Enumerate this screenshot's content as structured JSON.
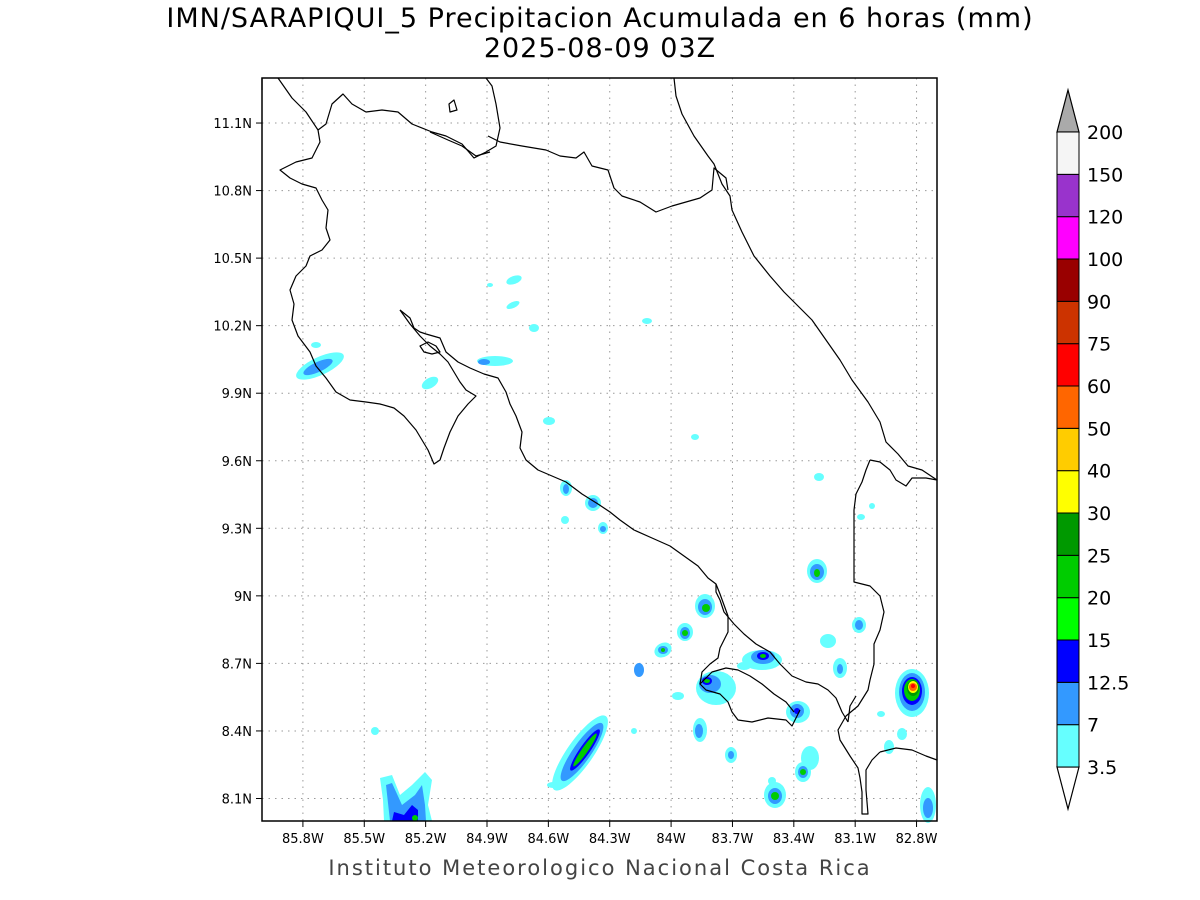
{
  "title": {
    "line1": "IMN/SARAPIQUI_5 Precipitacion Acumulada en 6 horas (mm)",
    "line2": "2025-08-09 03Z"
  },
  "footer": "Instituto Meteorologico Nacional Costa Rica",
  "map": {
    "lon_range": [
      -86.0,
      -82.7
    ],
    "lat_range": [
      8.0,
      11.3
    ],
    "lon_ticks": [
      "85.8W",
      "85.5W",
      "85.2W",
      "84.9W",
      "84.6W",
      "84.3W",
      "84W",
      "83.7W",
      "83.4W",
      "83.1W",
      "82.8W"
    ],
    "lat_ticks": [
      "11.1N",
      "10.8N",
      "10.5N",
      "10.2N",
      "9.9N",
      "9.6N",
      "9.3N",
      "9N",
      "8.7N",
      "8.4N",
      "8.1N"
    ]
  },
  "colorbar": {
    "labels": [
      "3.5",
      "7",
      "12.5",
      "15",
      "20",
      "25",
      "30",
      "40",
      "50",
      "60",
      "75",
      "90",
      "100",
      "120",
      "150",
      "200"
    ],
    "colors": [
      "#66ffff",
      "#3399ff",
      "#0000ff",
      "#00ff00",
      "#00cc00",
      "#009900",
      "#ffff00",
      "#ffcc00",
      "#ff6600",
      "#ff0000",
      "#cc3300",
      "#990000",
      "#ff00ff",
      "#9933cc",
      "#f5f5f5"
    ],
    "over_color": "#aaaaaa"
  }
}
